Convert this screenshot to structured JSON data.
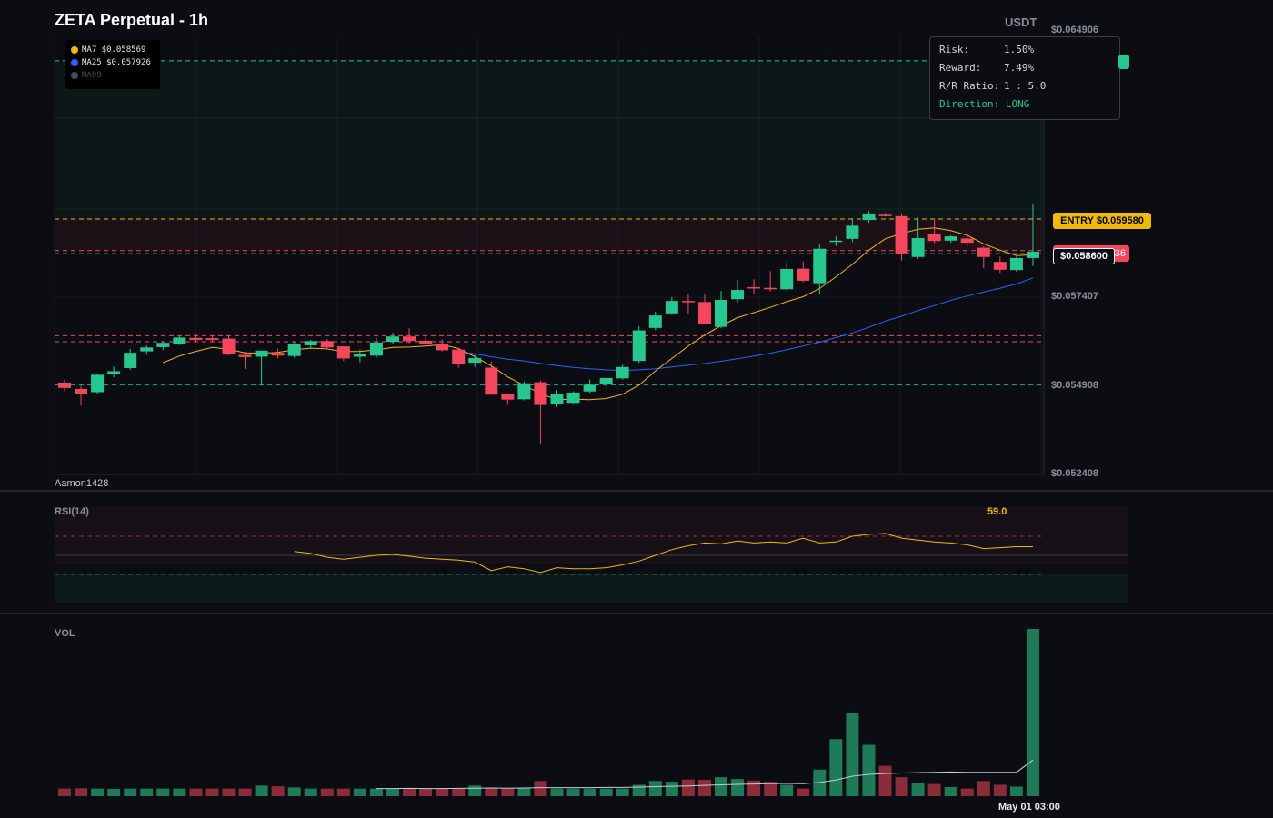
{
  "header": {
    "title": "ZETA Perpetual - 1h",
    "currency": "USDT"
  },
  "legend": [
    {
      "label": "MA7 $0.058569",
      "color": "#f0b90b"
    },
    {
      "label": "MA25 $0.057926",
      "color": "#2962ff"
    },
    {
      "label": "MA99 --",
      "color": "#4a4e57"
    }
  ],
  "risk_box": {
    "rows": [
      {
        "key": "Risk:",
        "value": "1.50%"
      },
      {
        "key": "Reward:",
        "value": "7.49%"
      },
      {
        "key": "R/R Ratio:",
        "value": "1 : 5.0"
      }
    ],
    "direction": "Direction: LONG"
  },
  "price_axis": [
    "$0.064906",
    "$0.057407",
    "$0.054908",
    "$0.052408"
  ],
  "tags": {
    "entry": "ENTRY $0.059580",
    "current": "$0.058600",
    "stop_partial": "36"
  },
  "watermark": "Aamon1428",
  "rsi": {
    "label": "RSI(14)",
    "value": "59.0"
  },
  "volume": {
    "label": "VOL"
  },
  "time_axis": [
    "May 01 03:00"
  ],
  "colors": {
    "up": "#26c88f",
    "down": "#f6465d",
    "ma7": "#f0b90b",
    "ma25": "#2962ff",
    "entry": "#f0b90b",
    "take_profit": "#26c88f",
    "stop": "#f6465d"
  },
  "chart_data": {
    "type": "candlestick",
    "ylim": [
      0.052408,
      0.064906
    ],
    "levels": {
      "take_profit": 0.06404,
      "entry": 0.05958,
      "stop": 0.05869,
      "current": 0.0586,
      "upper_red": 0.05629,
      "lower_red": 0.05612,
      "lower_green": 0.05491
    },
    "candles": [
      [
        0.05497,
        0.05506,
        0.05473,
        0.05482
      ],
      [
        0.05479,
        0.05488,
        0.05432,
        0.05464
      ],
      [
        0.0547,
        0.05523,
        0.05466,
        0.05519
      ],
      [
        0.05521,
        0.05542,
        0.05512,
        0.05529
      ],
      [
        0.05538,
        0.05592,
        0.05533,
        0.05581
      ],
      [
        0.05585,
        0.05602,
        0.05575,
        0.05596
      ],
      [
        0.05597,
        0.05614,
        0.05589,
        0.05609
      ],
      [
        0.05607,
        0.05628,
        0.05603,
        0.05624
      ],
      [
        0.05623,
        0.05634,
        0.05611,
        0.05617
      ],
      [
        0.05622,
        0.0563,
        0.05612,
        0.05617
      ],
      [
        0.05621,
        0.0563,
        0.05574,
        0.05578
      ],
      [
        0.05575,
        0.05584,
        0.05536,
        0.05569
      ],
      [
        0.0557,
        0.05588,
        0.05489,
        0.05587
      ],
      [
        0.05581,
        0.05593,
        0.05565,
        0.05573
      ],
      [
        0.05572,
        0.05611,
        0.05567,
        0.05606
      ],
      [
        0.05602,
        0.05617,
        0.05593,
        0.05614
      ],
      [
        0.05614,
        0.0562,
        0.0559,
        0.05596
      ],
      [
        0.05599,
        0.05599,
        0.05558,
        0.05565
      ],
      [
        0.0557,
        0.0559,
        0.05554,
        0.05579
      ],
      [
        0.05573,
        0.05623,
        0.05567,
        0.0561
      ],
      [
        0.05612,
        0.05637,
        0.05606,
        0.05627
      ],
      [
        0.05627,
        0.0565,
        0.05608,
        0.05614
      ],
      [
        0.05615,
        0.05629,
        0.05605,
        0.05607
      ],
      [
        0.05606,
        0.05619,
        0.05585,
        0.05588
      ],
      [
        0.0559,
        0.05595,
        0.05539,
        0.0555
      ],
      [
        0.05553,
        0.05575,
        0.0554,
        0.05566
      ],
      [
        0.05539,
        0.05557,
        0.05467,
        0.05463
      ],
      [
        0.05464,
        0.05464,
        0.05434,
        0.05449
      ],
      [
        0.0545,
        0.055,
        0.05447,
        0.05495
      ],
      [
        0.05498,
        0.05503,
        0.05326,
        0.05434
      ],
      [
        0.05436,
        0.05475,
        0.05428,
        0.05466
      ],
      [
        0.0544,
        0.05472,
        0.05438,
        0.05469
      ],
      [
        0.05472,
        0.05506,
        0.05468,
        0.05491
      ],
      [
        0.05493,
        0.05512,
        0.05482,
        0.0551
      ],
      [
        0.05509,
        0.05548,
        0.05505,
        0.05541
      ],
      [
        0.05558,
        0.05656,
        0.05552,
        0.05644
      ],
      [
        0.05651,
        0.05697,
        0.05645,
        0.05686
      ],
      [
        0.05692,
        0.05738,
        0.05688,
        0.05727
      ],
      [
        0.05727,
        0.05747,
        0.05689,
        0.05724
      ],
      [
        0.05724,
        0.05748,
        0.05663,
        0.05663
      ],
      [
        0.05654,
        0.05755,
        0.0565,
        0.0573
      ],
      [
        0.05732,
        0.05786,
        0.05722,
        0.05758
      ],
      [
        0.05766,
        0.05788,
        0.05746,
        0.05762
      ],
      [
        0.05764,
        0.05811,
        0.05754,
        0.0576
      ],
      [
        0.0576,
        0.05836,
        0.05755,
        0.05817
      ],
      [
        0.05818,
        0.05838,
        0.0578,
        0.05784
      ],
      [
        0.05777,
        0.05887,
        0.05746,
        0.05874
      ],
      [
        0.05894,
        0.05909,
        0.05882,
        0.05897
      ],
      [
        0.05902,
        0.0596,
        0.05893,
        0.05939
      ],
      [
        0.05955,
        0.0598,
        0.05948,
        0.05972
      ],
      [
        0.0597,
        0.05975,
        0.05965,
        0.05966
      ],
      [
        0.05966,
        0.05974,
        0.05841,
        0.05861
      ],
      [
        0.05851,
        0.05962,
        0.05846,
        0.05904
      ],
      [
        0.05915,
        0.05958,
        0.0589,
        0.05896
      ],
      [
        0.05897,
        0.05912,
        0.05891,
        0.05909
      ],
      [
        0.05903,
        0.05917,
        0.0588,
        0.05891
      ],
      [
        0.05877,
        0.0588,
        0.05819,
        0.05851
      ],
      [
        0.05837,
        0.05852,
        0.05806,
        0.05815
      ],
      [
        0.05814,
        0.05857,
        0.05809,
        0.05848
      ],
      [
        0.05848,
        0.06002,
        0.05825,
        0.05866
      ]
    ],
    "ma7": [
      null,
      null,
      null,
      null,
      null,
      null,
      0.05553,
      0.05572,
      0.05585,
      0.05596,
      0.05591,
      0.05581,
      0.0558,
      0.05582,
      0.0559,
      0.05594,
      0.05592,
      0.05584,
      0.05585,
      0.05589,
      0.05596,
      0.05597,
      0.056,
      0.05604,
      0.05593,
      0.0557,
      0.05544,
      0.05513,
      0.05489,
      0.05466,
      0.05449,
      0.0545,
      0.05449,
      0.05452,
      0.05464,
      0.0549,
      0.0553,
      0.05565,
      0.056,
      0.05631,
      0.05657,
      0.0568,
      0.05694,
      0.05709,
      0.05725,
      0.05739,
      0.05762,
      0.05795,
      0.0583,
      0.0587,
      0.05902,
      0.05917,
      0.05929,
      0.05933,
      0.05925,
      0.05912,
      0.05888,
      0.0587,
      0.05855,
      0.05857
    ],
    "ma25": [
      null,
      null,
      null,
      null,
      null,
      null,
      null,
      null,
      null,
      null,
      null,
      null,
      null,
      null,
      null,
      null,
      null,
      null,
      null,
      null,
      null,
      null,
      null,
      null,
      0.05584,
      0.05578,
      0.0557,
      0.05563,
      0.05558,
      0.05551,
      0.05545,
      0.0554,
      0.05536,
      0.05533,
      0.05531,
      0.05533,
      0.05536,
      0.05541,
      0.05546,
      0.05551,
      0.05557,
      0.05564,
      0.05572,
      0.0558,
      0.0559,
      0.056,
      0.05611,
      0.05624,
      0.05637,
      0.05653,
      0.0567,
      0.05684,
      0.057,
      0.05714,
      0.05729,
      0.05741,
      0.05752,
      0.05763,
      0.05775,
      0.05792
    ],
    "rsi": [
      null,
      null,
      null,
      null,
      null,
      null,
      null,
      null,
      null,
      null,
      null,
      null,
      null,
      null,
      54,
      52,
      48,
      46,
      48,
      50,
      51,
      49,
      47,
      46,
      45,
      43,
      34,
      38,
      36,
      32,
      37,
      36,
      36,
      37,
      40,
      44,
      50,
      56,
      60,
      63,
      62,
      65,
      63,
      64,
      63,
      68,
      63,
      64,
      70,
      72,
      73,
      68,
      66,
      64,
      63,
      61,
      57,
      58,
      59,
      59
    ],
    "volume": [
      40,
      42,
      40,
      38,
      40,
      40,
      40,
      40,
      40,
      40,
      40,
      40,
      56,
      52,
      46,
      40,
      40,
      40,
      40,
      40,
      40,
      40,
      40,
      40,
      40,
      56,
      40,
      40,
      44,
      80,
      40,
      40,
      40,
      40,
      40,
      60,
      80,
      76,
      88,
      86,
      100,
      90,
      82,
      76,
      60,
      40,
      140,
      300,
      440,
      270,
      160,
      100,
      70,
      64,
      48,
      40,
      80,
      60,
      50,
      880
    ],
    "volume_ma": [
      null,
      null,
      null,
      null,
      null,
      null,
      null,
      null,
      null,
      null,
      null,
      null,
      null,
      null,
      null,
      null,
      null,
      null,
      null,
      40,
      40,
      41,
      40,
      40,
      41,
      42,
      43,
      42,
      43,
      45,
      45,
      45,
      45,
      46,
      46,
      48,
      50,
      52,
      54,
      57,
      60,
      62,
      64,
      66,
      67,
      66,
      72,
      85,
      105,
      115,
      119,
      122,
      124,
      126,
      127,
      126,
      126,
      126,
      126,
      190
    ]
  }
}
